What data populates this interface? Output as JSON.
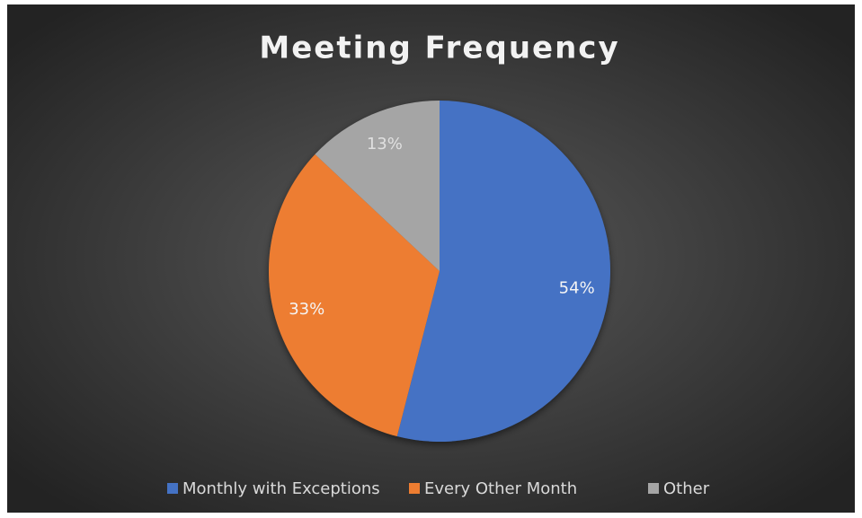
{
  "chart_data": {
    "type": "pie",
    "title": "Meeting Frequency",
    "categories": [
      "Monthly with Exceptions",
      "Every Other Month",
      "Other"
    ],
    "values": [
      54,
      33,
      13
    ],
    "value_labels": [
      "54%",
      "33%",
      "13%"
    ],
    "colors": [
      "#4472c4",
      "#ed7d31",
      "#a5a5a5"
    ],
    "legend": "bottom"
  }
}
